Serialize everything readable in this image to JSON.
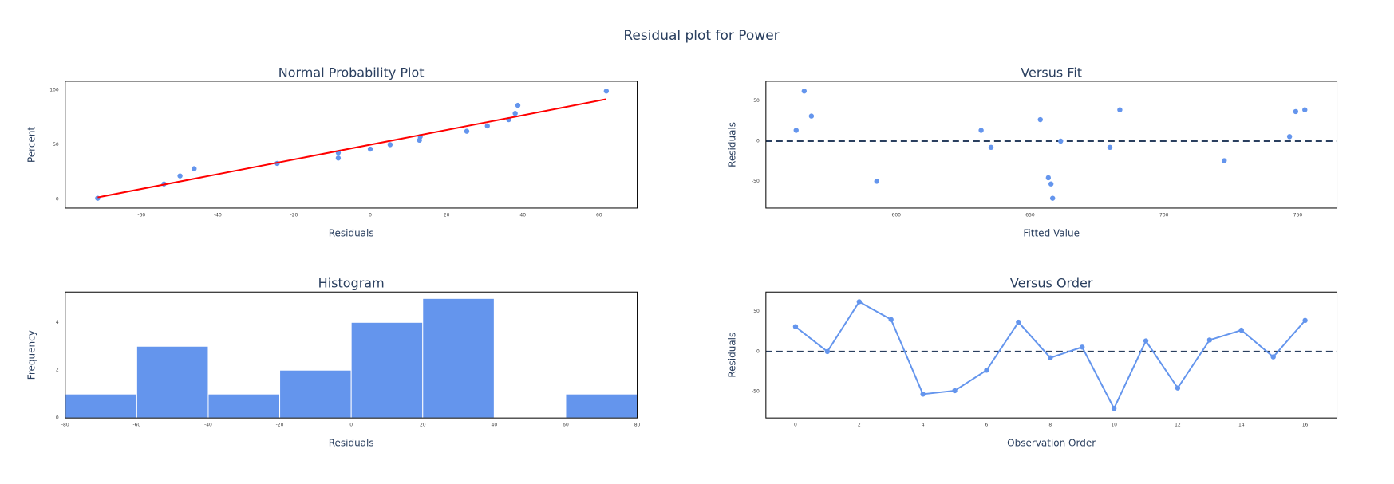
{
  "title": "Residual plot for Power",
  "chart_data": [
    {
      "type": "scatter",
      "title": "Normal Probability Plot",
      "x_label": "Residuals",
      "y_label": "Percent",
      "x": [
        -71.5,
        -54.1,
        -49.9,
        -46.2,
        -24.4,
        -8.4,
        -8.4,
        0,
        5.2,
        12.9,
        13.1,
        25.3,
        30.7,
        36.3,
        38,
        38.7,
        61.9
      ],
      "values": [
        0.8,
        13.9,
        21.3,
        27.9,
        32.8,
        42.6,
        37.7,
        45.9,
        50,
        54.1,
        57.4,
        62.3,
        67.2,
        73,
        78.7,
        86.1,
        99.2
      ],
      "color": "#6495ed",
      "fit_line": {
        "x": [
          -71.5,
          61.9
        ],
        "values": [
          1.6,
          91.8
        ],
        "color": "#ff0000"
      },
      "xlim": [
        -80,
        70
      ],
      "ylim": [
        -8.2,
        108.2
      ],
      "xticks": [
        -60,
        -40,
        -20,
        0,
        20,
        40,
        60
      ],
      "yticks": [
        0,
        50,
        100
      ]
    },
    {
      "type": "scatter",
      "title": "Versus Fit",
      "x_label": "Fitted Value",
      "y_label": "Residuals",
      "x": [
        562.6,
        565.6,
        568.3,
        592.7,
        631.7,
        635.4,
        653.8,
        656.8,
        657.8,
        658.4,
        661.4,
        679.8,
        683.5,
        722.5,
        746.9,
        749.2,
        752.6
      ],
      "values": [
        13.3,
        62.2,
        31.1,
        -50,
        13.3,
        -7.8,
        26.7,
        -45.6,
        -53.3,
        -71.1,
        0,
        -7.8,
        38.9,
        -24.4,
        5.6,
        36.7,
        38.9
      ],
      "color": "#6495ed",
      "reference_line": 0,
      "reference_color": "#2a3f5f",
      "xlim": [
        551.3,
        764.6
      ],
      "ylim": [
        -83.3,
        74.4
      ],
      "xticks": [
        600,
        650,
        700,
        750
      ],
      "yticks": [
        -50,
        0,
        50
      ]
    },
    {
      "type": "histogram",
      "title": "Histogram",
      "x_label": "Residuals",
      "y_label": "Frequency",
      "bins": [
        -80,
        -60,
        -40,
        -20,
        0,
        20,
        40,
        60,
        80
      ],
      "values": [
        1,
        3,
        1,
        2,
        4,
        5,
        0,
        1
      ],
      "color": "#6495ed",
      "xlim": [
        -80,
        80
      ],
      "ylim": [
        0,
        5.27
      ],
      "xticks": [
        -80,
        -60,
        -40,
        -20,
        0,
        20,
        40,
        60,
        80
      ],
      "yticks": [
        0,
        2,
        4
      ]
    },
    {
      "type": "line",
      "title": "Versus Order",
      "x_label": "Observation Order",
      "y_label": "Residuals",
      "x": [
        0,
        1,
        2,
        3,
        4,
        5,
        6,
        7,
        8,
        9,
        10,
        11,
        12,
        13,
        14,
        15,
        16
      ],
      "values": [
        31.1,
        0,
        62.2,
        40,
        -53.3,
        -48.9,
        -23.3,
        36.7,
        -7.8,
        5.6,
        -71.1,
        13.3,
        -45.6,
        14.4,
        26.7,
        -6.7,
        38.9
      ],
      "color": "#6495ed",
      "reference_line": 0,
      "reference_color": "#2a3f5f",
      "xlim": [
        -0.93,
        17
      ],
      "ylim": [
        -83,
        74.4
      ],
      "xticks": [
        0,
        2,
        4,
        6,
        8,
        10,
        12,
        14,
        16
      ],
      "yticks": [
        -50,
        0,
        50
      ]
    }
  ]
}
